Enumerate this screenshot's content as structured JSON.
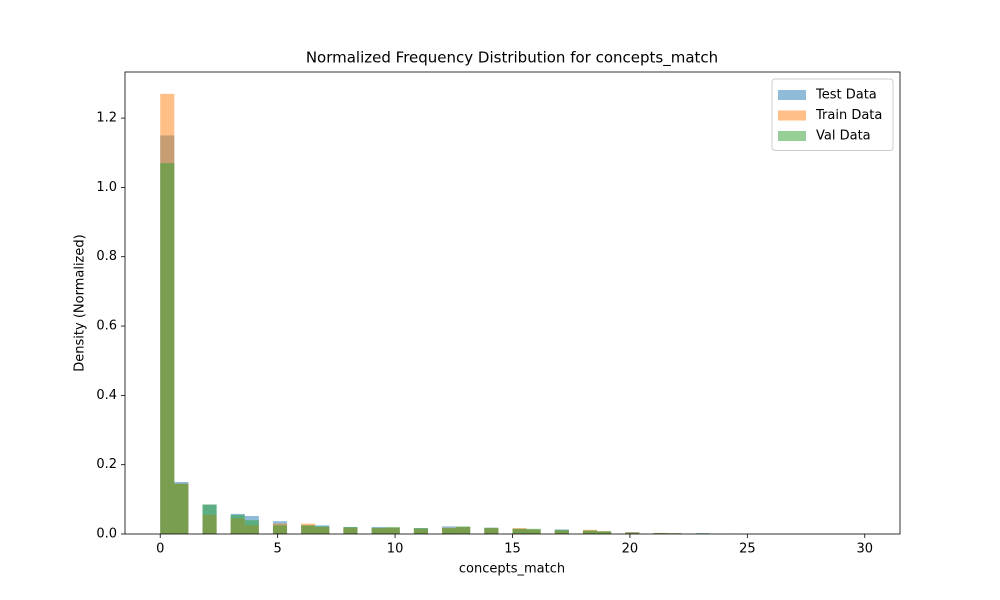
{
  "chart_data": {
    "type": "histogram",
    "title": "Normalized Frequency Distribution for concepts_match",
    "x_label": "concepts_match",
    "y_label": "Density (Normalized)",
    "bins": [
      0,
      0.6,
      1.2,
      1.8,
      2.4,
      3,
      3.6,
      4.2,
      4.8,
      5.4,
      6,
      6.6,
      7.2,
      7.8,
      8.4,
      9,
      9.6,
      10.2,
      10.8,
      11.4,
      12,
      12.6,
      13.2,
      13.8,
      14.4,
      15,
      15.6,
      16.2,
      16.8,
      17.4,
      18,
      18.6,
      19.2,
      19.8,
      20.4,
      21,
      21.6,
      22.2,
      22.8,
      23.4,
      24,
      24.6,
      25.2,
      25.8,
      26.4,
      27,
      27.6,
      28.2,
      28.8,
      29.4,
      30
    ],
    "series": [
      {
        "name": "Test Data",
        "color": "#1f77b4",
        "values": [
          1.15,
          0.15,
          0,
          0.085,
          0,
          0.058,
          0.052,
          0,
          0.037,
          0,
          0.025,
          0.025,
          0,
          0.02,
          0,
          0.02,
          0.018,
          0,
          0.017,
          0,
          0.022,
          0.02,
          0,
          0.018,
          0,
          0.015,
          0.013,
          0,
          0.013,
          0,
          0.01,
          0.007,
          0,
          0.005,
          0,
          0.003,
          0.002,
          0,
          0.002,
          0,
          0.001,
          0,
          0,
          0,
          0,
          0,
          0,
          0,
          0,
          0
        ]
      },
      {
        "name": "Train Data",
        "color": "#ff7f0e",
        "values": [
          1.27,
          0.145,
          0,
          0.055,
          0,
          0.045,
          0.025,
          0,
          0.03,
          0,
          0.03,
          0.02,
          0,
          0.018,
          0,
          0.017,
          0.018,
          0,
          0.015,
          0,
          0.018,
          0.02,
          0,
          0.017,
          0,
          0.017,
          0.013,
          0,
          0.01,
          0,
          0.012,
          0.008,
          0,
          0.005,
          0,
          0.003,
          0.002,
          0,
          0.001,
          0,
          0,
          0,
          0,
          0,
          0,
          0,
          0,
          0,
          0,
          0
        ]
      },
      {
        "name": "Val Data",
        "color": "#2ca02c",
        "values": [
          1.07,
          0.145,
          0,
          0.085,
          0,
          0.055,
          0.04,
          0,
          0.025,
          0,
          0.025,
          0.022,
          0,
          0.02,
          0,
          0.018,
          0.02,
          0,
          0.017,
          0,
          0.017,
          0.022,
          0,
          0.018,
          0,
          0.015,
          0.015,
          0,
          0.012,
          0,
          0.01,
          0.008,
          0,
          0.004,
          0,
          0.002,
          0.002,
          0,
          0.002,
          0,
          0,
          0,
          0,
          0,
          0,
          0,
          0,
          0,
          0,
          0
        ]
      }
    ],
    "opacity": 0.5,
    "xlim": [
      -1.5,
      31.5
    ],
    "ylim": [
      0,
      1.333
    ],
    "xticks": [
      0,
      5,
      10,
      15,
      20,
      25,
      30
    ],
    "yticks": [
      {
        "value": 0,
        "label": "0.0"
      },
      0.2,
      0.4,
      0.6,
      0.8,
      {
        "value": 1,
        "label": "1.0"
      },
      1.2
    ],
    "grid": false,
    "legend": "upper-right"
  }
}
